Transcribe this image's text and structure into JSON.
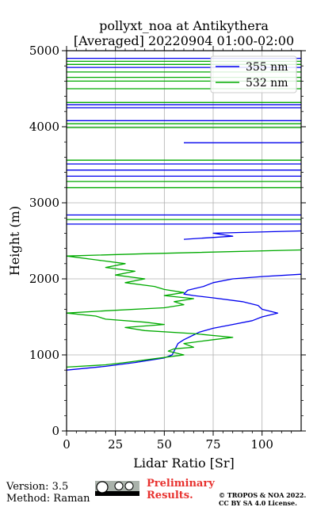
{
  "chart_data": {
    "type": "line",
    "title_line1": "pollyxt_noa at Antikythera",
    "title_line2": "[Averaged] 20220904 01:00-02:00",
    "xlabel": "Lidar Ratio [Sr]",
    "ylabel": "Height (m)",
    "xlim": [
      0,
      120
    ],
    "ylim": [
      0,
      5000
    ],
    "xticks": [
      "0",
      "25",
      "50",
      "75",
      "100"
    ],
    "yticks": [
      "0",
      "1000",
      "2000",
      "3000",
      "4000",
      "5000"
    ],
    "grid": true,
    "legend_position": "top-right",
    "series": [
      {
        "name": "355 nm",
        "color": "#0000ee",
        "points": [
          [
            0,
            800
          ],
          [
            20,
            850
          ],
          [
            35,
            900
          ],
          [
            50,
            960
          ],
          [
            54,
            1000
          ],
          [
            55,
            1050
          ],
          [
            56,
            1100
          ],
          [
            57,
            1150
          ],
          [
            60,
            1200
          ],
          [
            64,
            1250
          ],
          [
            68,
            1300
          ],
          [
            75,
            1350
          ],
          [
            85,
            1400
          ],
          [
            95,
            1450
          ],
          [
            100,
            1500
          ],
          [
            108,
            1550
          ],
          [
            100,
            1600
          ],
          [
            98,
            1650
          ],
          [
            90,
            1700
          ],
          [
            75,
            1750
          ],
          [
            65,
            1780
          ],
          [
            60,
            1800
          ],
          [
            62,
            1850
          ],
          [
            70,
            1900
          ],
          [
            75,
            1950
          ],
          [
            85,
            2000
          ],
          [
            100,
            2030
          ],
          [
            120,
            2060
          ],
          [
            null,
            null
          ],
          [
            60,
            2520
          ],
          [
            85,
            2560
          ],
          [
            75,
            2600
          ],
          [
            120,
            2630
          ],
          [
            null,
            null
          ],
          [
            0,
            2720
          ],
          [
            120,
            2720
          ],
          [
            null,
            null
          ],
          [
            0,
            2840
          ],
          [
            120,
            2840
          ],
          [
            null,
            null
          ],
          [
            0,
            3350
          ],
          [
            120,
            3350
          ],
          [
            null,
            null
          ],
          [
            0,
            3430
          ],
          [
            120,
            3430
          ],
          [
            null,
            null
          ],
          [
            0,
            3510
          ],
          [
            120,
            3510
          ],
          [
            null,
            null
          ],
          [
            60,
            3790
          ],
          [
            120,
            3790
          ],
          [
            null,
            null
          ],
          [
            0,
            4080
          ],
          [
            120,
            4080
          ],
          [
            null,
            null
          ],
          [
            0,
            4250
          ],
          [
            120,
            4250
          ],
          [
            null,
            null
          ],
          [
            0,
            4290
          ],
          [
            120,
            4290
          ],
          [
            null,
            null
          ],
          [
            0,
            4780
          ],
          [
            120,
            4780
          ],
          [
            null,
            null
          ],
          [
            0,
            4900
          ],
          [
            120,
            4900
          ]
        ]
      },
      {
        "name": "532 nm",
        "color": "#00aa00",
        "points": [
          [
            0,
            840
          ],
          [
            20,
            870
          ],
          [
            30,
            900
          ],
          [
            45,
            950
          ],
          [
            60,
            1000
          ],
          [
            52,
            1050
          ],
          [
            55,
            1080
          ],
          [
            65,
            1100
          ],
          [
            60,
            1150
          ],
          [
            75,
            1200
          ],
          [
            85,
            1230
          ],
          [
            65,
            1280
          ],
          [
            40,
            1320
          ],
          [
            30,
            1360
          ],
          [
            50,
            1400
          ],
          [
            40,
            1430
          ],
          [
            20,
            1470
          ],
          [
            15,
            1510
          ],
          [
            0,
            1550
          ],
          [
            20,
            1580
          ],
          [
            50,
            1620
          ],
          [
            60,
            1660
          ],
          [
            55,
            1700
          ],
          [
            65,
            1740
          ],
          [
            50,
            1780
          ],
          [
            60,
            1820
          ],
          [
            50,
            1860
          ],
          [
            45,
            1900
          ],
          [
            30,
            1950
          ],
          [
            40,
            2000
          ],
          [
            25,
            2050
          ],
          [
            35,
            2100
          ],
          [
            20,
            2150
          ],
          [
            30,
            2200
          ],
          [
            15,
            2250
          ],
          [
            0,
            2300
          ],
          [
            40,
            2330
          ],
          [
            120,
            2380
          ],
          [
            null,
            null
          ],
          [
            0,
            2780
          ],
          [
            120,
            2780
          ],
          [
            null,
            null
          ],
          [
            0,
            3200
          ],
          [
            120,
            3200
          ],
          [
            null,
            null
          ],
          [
            0,
            3280
          ],
          [
            120,
            3280
          ],
          [
            null,
            null
          ],
          [
            0,
            3560
          ],
          [
            120,
            3560
          ],
          [
            null,
            null
          ],
          [
            0,
            3990
          ],
          [
            120,
            3990
          ],
          [
            null,
            null
          ],
          [
            0,
            4040
          ],
          [
            120,
            4040
          ],
          [
            null,
            null
          ],
          [
            0,
            4320
          ],
          [
            120,
            4320
          ],
          [
            null,
            null
          ],
          [
            0,
            4500
          ],
          [
            120,
            4500
          ],
          [
            null,
            null
          ],
          [
            0,
            4600
          ],
          [
            120,
            4600
          ],
          [
            null,
            null
          ],
          [
            0,
            4650
          ],
          [
            120,
            4650
          ],
          [
            null,
            null
          ],
          [
            0,
            4720
          ],
          [
            120,
            4720
          ],
          [
            null,
            null
          ],
          [
            0,
            4820
          ],
          [
            120,
            4820
          ],
          [
            null,
            null
          ],
          [
            0,
            4860
          ],
          [
            120,
            4860
          ]
        ]
      }
    ]
  },
  "footer": {
    "version": "Version: 3.5",
    "method": "Method: Raman",
    "preliminary_line1": "Preliminary",
    "preliminary_line2": "Results.",
    "copyright_line1": "© TROPOS & NOA 2022.",
    "copyright_line2": "CC BY SA 4.0 License.",
    "license_badge": "cc-by-sa-badge"
  }
}
